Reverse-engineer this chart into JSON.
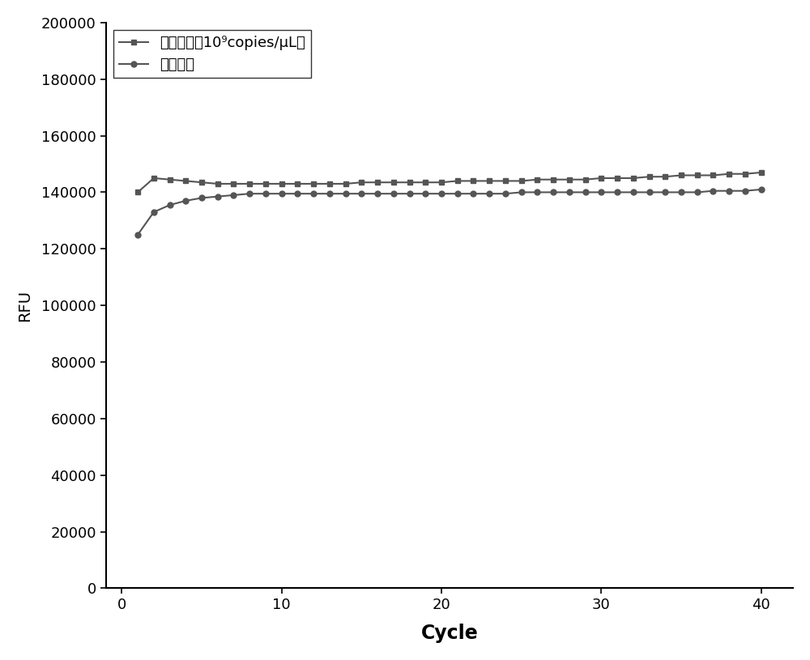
{
  "title": "",
  "xlabel": "Cycle",
  "ylabel": "RFU",
  "xlim": [
    -1,
    42
  ],
  "ylim": [
    0,
    200000
  ],
  "yticks": [
    0,
    20000,
    40000,
    60000,
    80000,
    100000,
    120000,
    140000,
    160000,
    180000,
    200000
  ],
  "xticks": [
    0,
    10,
    20,
    30,
    40
  ],
  "line_color": "#555555",
  "legend_label1": "阳性对照（10⁹copies/μL）",
  "legend_label2": "阴性对照",
  "positive_x": [
    1,
    2,
    3,
    4,
    5,
    6,
    7,
    8,
    9,
    10,
    11,
    12,
    13,
    14,
    15,
    16,
    17,
    18,
    19,
    20,
    21,
    22,
    23,
    24,
    25,
    26,
    27,
    28,
    29,
    30,
    31,
    32,
    33,
    34,
    35,
    36,
    37,
    38,
    39,
    40
  ],
  "positive_y": [
    140000,
    145000,
    144500,
    144000,
    143500,
    143000,
    143000,
    143000,
    143000,
    143000,
    143000,
    143000,
    143000,
    143000,
    143500,
    143500,
    143500,
    143500,
    143500,
    143500,
    144000,
    144000,
    144000,
    144000,
    144000,
    144500,
    144500,
    144500,
    144500,
    145000,
    145000,
    145000,
    145500,
    145500,
    146000,
    146000,
    146000,
    146500,
    146500,
    147000
  ],
  "negative_x": [
    1,
    2,
    3,
    4,
    5,
    6,
    7,
    8,
    9,
    10,
    11,
    12,
    13,
    14,
    15,
    16,
    17,
    18,
    19,
    20,
    21,
    22,
    23,
    24,
    25,
    26,
    27,
    28,
    29,
    30,
    31,
    32,
    33,
    34,
    35,
    36,
    37,
    38,
    39,
    40
  ],
  "negative_y": [
    125000,
    133000,
    135500,
    137000,
    138000,
    138500,
    139000,
    139500,
    139500,
    139500,
    139500,
    139500,
    139500,
    139500,
    139500,
    139500,
    139500,
    139500,
    139500,
    139500,
    139500,
    139500,
    139500,
    139500,
    140000,
    140000,
    140000,
    140000,
    140000,
    140000,
    140000,
    140000,
    140000,
    140000,
    140000,
    140000,
    140500,
    140500,
    140500,
    141000
  ],
  "background_color": "#ffffff",
  "marker_size": 5,
  "linewidth": 1.5,
  "xlabel_fontsize": 17,
  "ylabel_fontsize": 14,
  "tick_fontsize": 13,
  "legend_fontsize": 13
}
